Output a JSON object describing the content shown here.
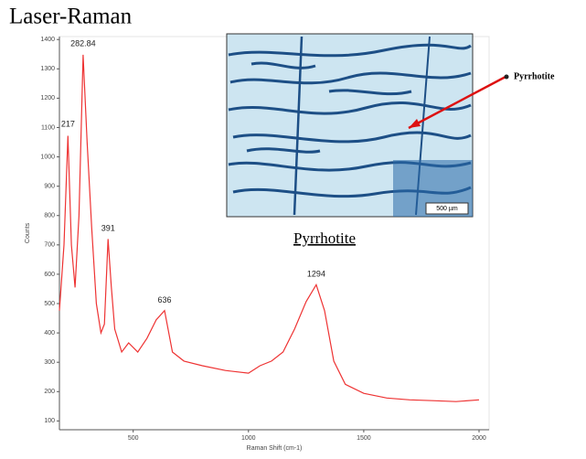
{
  "chart_data": {
    "type": "line",
    "title": "Laser-Raman",
    "xlabel": "Raman Shift (cm-1)",
    "ylabel": "Counts",
    "x": [
      180,
      200,
      217,
      232,
      248,
      265,
      282.84,
      300,
      320,
      340,
      360,
      375,
      391,
      405,
      420,
      450,
      480,
      520,
      560,
      600,
      636,
      670,
      720,
      800,
      900,
      1000,
      1050,
      1100,
      1150,
      1200,
      1250,
      1294,
      1330,
      1370,
      1420,
      1500,
      1600,
      1700,
      1800,
      1900,
      2000
    ],
    "values": [
      476,
      700,
      1072,
      700,
      555,
      800,
      1348,
      1050,
      758,
      500,
      400,
      430,
      720,
      560,
      413,
      335,
      366,
      335,
      382,
      445,
      476,
      335,
      304,
      288,
      272,
      263,
      288,
      304,
      335,
      413,
      507,
      564,
      476,
      304,
      225,
      194,
      178,
      172,
      169,
      166,
      172
    ],
    "color": "#ee3333",
    "xlim": [
      180,
      2000
    ],
    "ylim": [
      70,
      1410
    ],
    "xticks": [
      500,
      1000,
      1500,
      2000
    ],
    "yticks": [
      100,
      200,
      300,
      400,
      500,
      600,
      700,
      800,
      900,
      1000,
      1100,
      1200,
      1300,
      1400
    ],
    "grid": false,
    "annotations": [
      {
        "text": "217",
        "x": 217,
        "y": 1110
      },
      {
        "text": "282.84",
        "x": 282.84,
        "y": 1385
      },
      {
        "text": "391",
        "x": 391,
        "y": 755
      },
      {
        "text": "636",
        "x": 636,
        "y": 510
      },
      {
        "text": "1294",
        "x": 1294,
        "y": 600
      }
    ],
    "inset_label": "Pyrrhotite",
    "pointer_label": "Pyrrhotite",
    "scale_bar": "500 µm"
  }
}
